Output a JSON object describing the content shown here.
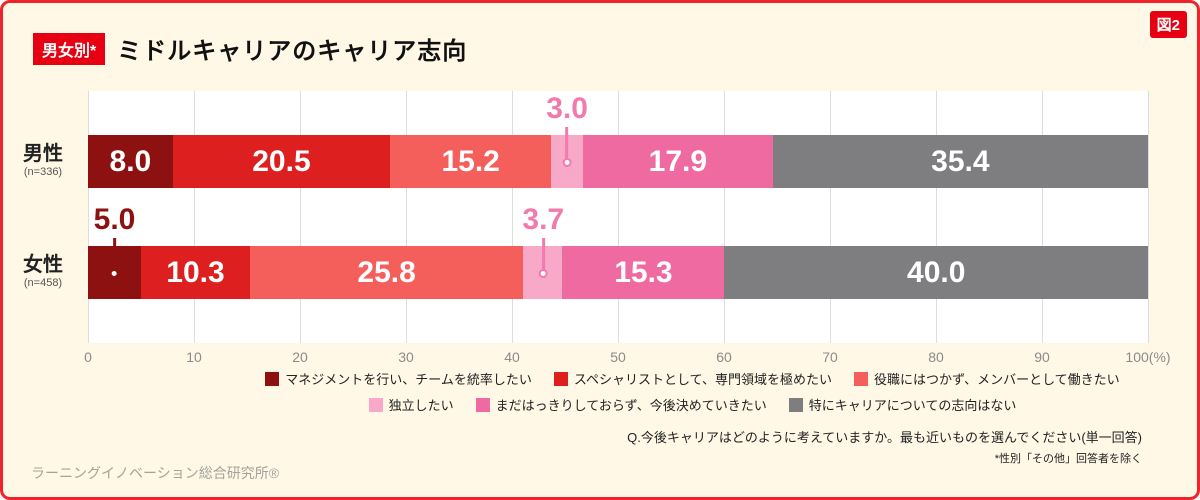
{
  "figure_badge": "図2",
  "header": {
    "category_badge": "男女別*",
    "title": "ミドルキャリアのキャリア志向"
  },
  "chart_data": {
    "type": "bar",
    "variant": "horizontal-stacked",
    "x_axis": {
      "min": 0,
      "max": 100,
      "ticks": [
        0,
        10,
        20,
        30,
        40,
        50,
        60,
        70,
        80,
        90,
        100
      ],
      "unit_suffix": "(%)",
      "grid": true
    },
    "categories": [
      {
        "label": "男性",
        "sublabel": "(n=336)"
      },
      {
        "label": "女性",
        "sublabel": "(n=458)"
      }
    ],
    "series": [
      {
        "name": "マネジメントを行い、チームを統率したい",
        "color": "#8E1111",
        "callout_color": "#8E1111",
        "values": [
          8.0,
          5.0
        ]
      },
      {
        "name": "スペシャリストとして、専門領域を極めたい",
        "color": "#DD1F1F",
        "values": [
          20.5,
          10.3
        ]
      },
      {
        "name": "役職にはつかず、メンバーとして働きたい",
        "color": "#F45F5C",
        "values": [
          15.2,
          25.8
        ]
      },
      {
        "name": "独立したい",
        "color": "#F8A9C8",
        "callout_color": "#F17BAE",
        "values": [
          3.0,
          3.7
        ]
      },
      {
        "name": "まだはっきりしておらず、今後決めていきたい",
        "color": "#EF6AA1",
        "values": [
          17.9,
          15.3
        ]
      },
      {
        "name": "特にキャリアについての志向はない",
        "color": "#7E7E80",
        "values": [
          35.4,
          40.0
        ]
      }
    ],
    "inside_label_min_percent": 6,
    "legend_rows": [
      [
        0,
        1,
        2
      ],
      [
        3,
        4,
        5
      ]
    ],
    "legend_position": "bottom"
  },
  "footer": {
    "question": "Q.今後キャリアはどのように考えていますか。最も近いものを選んでください(単一回答)",
    "note": "*性別「その他」回答者を除く",
    "source": "ラーニングイノベーション総合研究所®"
  }
}
